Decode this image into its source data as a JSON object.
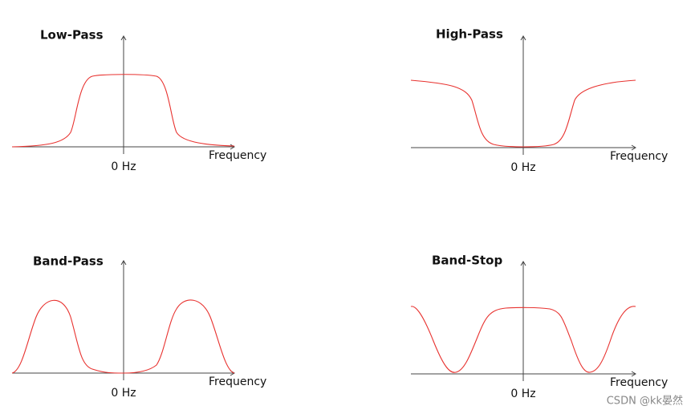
{
  "panels": [
    {
      "title": "Low-Pass",
      "x_label": "Frequency",
      "origin_label": "0 Hz"
    },
    {
      "title": "High-Pass",
      "x_label": "Frequency",
      "origin_label": "0 Hz"
    },
    {
      "title": "Band-Pass",
      "x_label": "Frequency",
      "origin_label": "0 Hz"
    },
    {
      "title": "Band-Stop",
      "x_label": "Frequency",
      "origin_label": "0 Hz"
    }
  ],
  "watermark": "CSDN @kk晏然"
}
